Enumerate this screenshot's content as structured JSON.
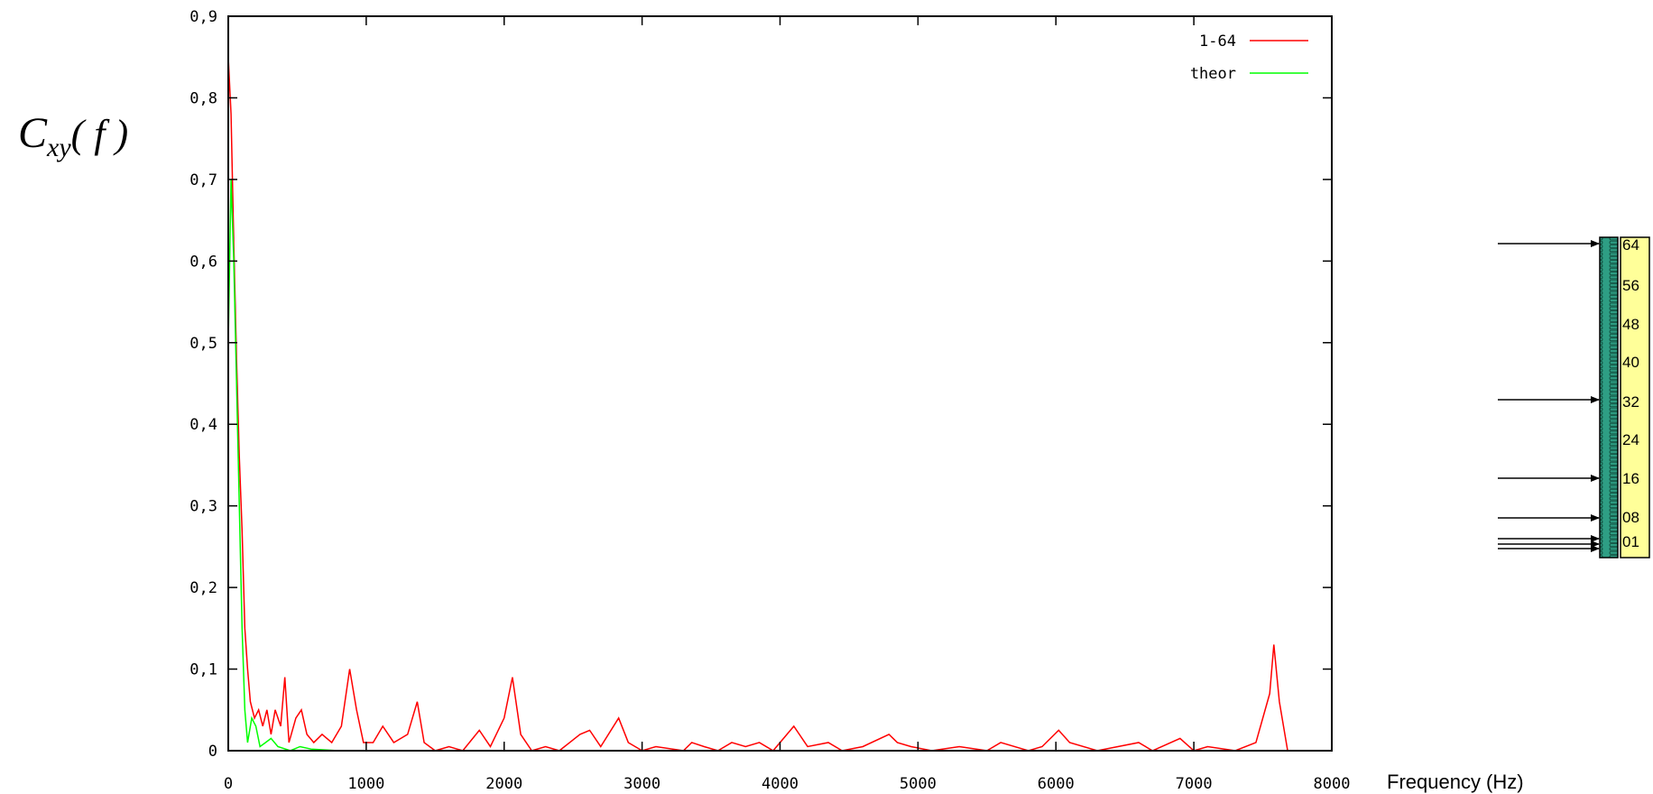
{
  "chart_data": {
    "type": "line",
    "ylabel": {
      "main": "C",
      "sub": "xy",
      "rest": "( f )"
    },
    "xlabel": "Frequency (Hz)",
    "xlim": [
      0,
      8000
    ],
    "xticks": [
      0,
      1000,
      2000,
      3000,
      4000,
      5000,
      6000,
      7000,
      8000
    ],
    "ylim": [
      0,
      0.9
    ],
    "yticks": [
      0,
      {
        "value": 0.1,
        "label": "0,1"
      },
      {
        "value": 0.2,
        "label": "0,2"
      },
      {
        "value": 0.3,
        "label": "0,3"
      },
      {
        "value": 0.4,
        "label": "0,4"
      },
      {
        "value": 0.5,
        "label": "0,5"
      },
      {
        "value": 0.6,
        "label": "0,6"
      },
      {
        "value": 0.7,
        "label": "0,7"
      },
      {
        "value": 0.8,
        "label": "0,8"
      },
      {
        "value": 0.9,
        "label": "0,9"
      }
    ],
    "legend": "top-right",
    "series": [
      {
        "name": "1-64",
        "color": "#ff0000",
        "x": [
          0,
          20,
          40,
          60,
          80,
          100,
          120,
          140,
          160,
          190,
          220,
          250,
          280,
          310,
          340,
          380,
          410,
          440,
          490,
          530,
          570,
          620,
          680,
          750,
          820,
          880,
          930,
          980,
          1050,
          1120,
          1200,
          1300,
          1370,
          1420,
          1500,
          1600,
          1700,
          1820,
          1900,
          2000,
          2060,
          2120,
          2200,
          2300,
          2400,
          2550,
          2620,
          2700,
          2830,
          2900,
          3000,
          3100,
          3300,
          3360,
          3450,
          3550,
          3650,
          3750,
          3850,
          3950,
          4100,
          4200,
          4350,
          4450,
          4600,
          4790,
          4850,
          4950,
          5100,
          5300,
          5500,
          5600,
          5800,
          5900,
          6020,
          6100,
          6300,
          6600,
          6700,
          6900,
          7000,
          7100,
          7300,
          7450,
          7550,
          7580,
          7620,
          7680
        ],
        "values": [
          0.85,
          0.78,
          0.62,
          0.48,
          0.36,
          0.27,
          0.15,
          0.1,
          0.06,
          0.04,
          0.05,
          0.03,
          0.05,
          0.02,
          0.05,
          0.03,
          0.09,
          0.01,
          0.04,
          0.05,
          0.02,
          0.01,
          0.02,
          0.01,
          0.03,
          0.1,
          0.05,
          0.01,
          0.01,
          0.03,
          0.01,
          0.02,
          0.06,
          0.01,
          0,
          0.005,
          0,
          0.025,
          0.005,
          0.04,
          0.09,
          0.02,
          0,
          0.005,
          0,
          0.02,
          0.025,
          0.005,
          0.04,
          0.01,
          0,
          0.005,
          0,
          0.01,
          0.005,
          0,
          0.01,
          0.005,
          0.01,
          0,
          0.03,
          0.005,
          0.01,
          0,
          0.005,
          0.02,
          0.01,
          0.005,
          0,
          0.005,
          0,
          0.01,
          0,
          0.005,
          0.025,
          0.01,
          0,
          0.01,
          0,
          0.015,
          0,
          0.005,
          0,
          0.01,
          0.07,
          0.13,
          0.06,
          0
        ]
      },
      {
        "name": "theor",
        "color": "#00ff00",
        "x": [
          0,
          20,
          40,
          60,
          80,
          100,
          120,
          140,
          170,
          200,
          230,
          270,
          310,
          360,
          450,
          520,
          600,
          700,
          800
        ],
        "values": [
          0.5,
          0.7,
          0.6,
          0.45,
          0.3,
          0.15,
          0.05,
          0.01,
          0.04,
          0.03,
          0.005,
          0.01,
          0.015,
          0.005,
          0,
          0.005,
          0.002,
          0.001,
          0
        ]
      }
    ]
  },
  "array": {
    "labels": [
      "64",
      "56",
      "48",
      "40",
      "32",
      "24",
      "16",
      "08",
      "01"
    ]
  }
}
